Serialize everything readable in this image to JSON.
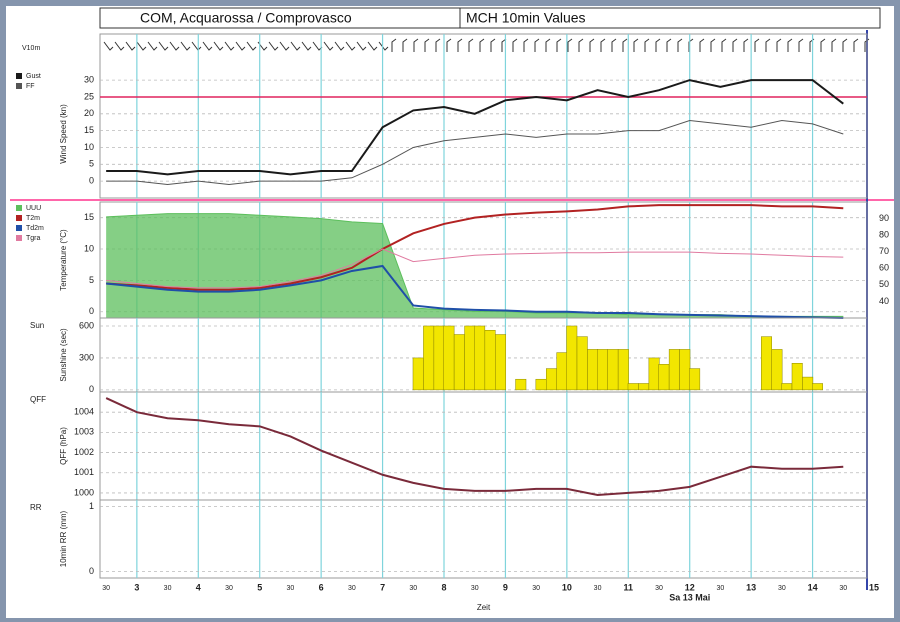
{
  "header": {
    "station": "COM, Acquarossa / Comprovasco",
    "product": "MCH 10min Values"
  },
  "chart_data": [
    {
      "type": "line",
      "barb_label": "V10m",
      "ylabel": "Wind Speed (kn)",
      "x": [
        2.5,
        3,
        3.5,
        4,
        4.5,
        5,
        5.5,
        6,
        6.5,
        7,
        7.5,
        8,
        8.5,
        9,
        9.5,
        10,
        10.5,
        11,
        11.5,
        12,
        12.5,
        13,
        13.5,
        14,
        14.5
      ],
      "series": [
        {
          "name": "Gust",
          "color": "#1a1a1a",
          "width": 2,
          "values": [
            3,
            3,
            2,
            3,
            3,
            3,
            2,
            3,
            3,
            16,
            21,
            22,
            20,
            24,
            25,
            24,
            27,
            25,
            27,
            30,
            28,
            30,
            30,
            30,
            23
          ]
        },
        {
          "name": "FF",
          "color": "#555555",
          "width": 1,
          "values": [
            0,
            0,
            -1,
            0,
            -1,
            0,
            0,
            0,
            1,
            5,
            10,
            12,
            13,
            14,
            13,
            14,
            14,
            15,
            15,
            18,
            17,
            16,
            18,
            17,
            14
          ]
        }
      ],
      "ylim": [
        -5,
        33
      ],
      "yticks": [
        0,
        5,
        10,
        15,
        20,
        25,
        30
      ],
      "reference_line": 25,
      "reference_color": "#e0245e",
      "xlim": [
        2.4,
        15
      ]
    },
    {
      "type": "line",
      "ylabel": "Temperature (°C)",
      "x": [
        2.5,
        3,
        3.5,
        4,
        4.5,
        5,
        5.5,
        6,
        6.5,
        7,
        7.5,
        8,
        8.5,
        9,
        9.5,
        10,
        10.5,
        11,
        11.5,
        12,
        12.5,
        13,
        13.5,
        14,
        14.5
      ],
      "series": [
        {
          "name": "UUU",
          "color": "#5cbf5c",
          "axis": "y2",
          "area": true,
          "values": [
            91,
            92,
            93,
            93,
            93,
            92,
            91,
            90,
            88,
            87,
            36,
            35,
            34,
            34,
            33,
            33,
            33,
            32,
            32,
            32,
            32,
            31,
            31,
            31,
            31
          ]
        },
        {
          "name": "T2m",
          "color": "#b22222",
          "width": 2,
          "values": [
            4.5,
            4.2,
            3.8,
            3.5,
            3.5,
            3.8,
            4.5,
            5.5,
            7,
            10,
            12.5,
            14,
            15,
            15.5,
            15.8,
            16,
            16.3,
            16.8,
            17,
            17,
            17,
            17,
            16.8,
            16.8,
            16.5
          ]
        },
        {
          "name": "Td2m",
          "color": "#1f4fa8",
          "width": 2,
          "values": [
            4.5,
            4,
            3.5,
            3.2,
            3.2,
            3.5,
            4.2,
            5,
            6.5,
            7.3,
            1,
            0.5,
            0.3,
            0.2,
            0,
            0,
            -0.2,
            -0.2,
            -0.4,
            -0.5,
            -0.6,
            -0.7,
            -0.8,
            -0.9,
            -1
          ]
        },
        {
          "name": "Tgra",
          "color": "#e07aa0",
          "width": 1,
          "values": [
            5,
            4.5,
            4,
            3.8,
            3.8,
            4,
            4.8,
            5.8,
            7.5,
            10,
            8,
            8.5,
            9,
            9.2,
            9.3,
            9.4,
            9.4,
            9.5,
            9.5,
            9.5,
            9.3,
            9.2,
            9,
            8.8,
            8.7
          ]
        }
      ],
      "ylim": [
        -1,
        17.5
      ],
      "yticks": [
        0,
        5,
        10,
        15
      ],
      "y2lim": [
        30,
        100
      ],
      "y2ticks": [
        40,
        50,
        60,
        70,
        80,
        90
      ],
      "xlim": [
        2.4,
        15
      ]
    },
    {
      "type": "bar",
      "label": "Sun",
      "ylabel": "Sunshine (sec)",
      "color": "#f2e600",
      "x": [
        7.58,
        7.75,
        7.92,
        8.08,
        8.25,
        8.42,
        8.58,
        8.75,
        8.92,
        9.08,
        9.25,
        9.42,
        9.58,
        9.75,
        9.92,
        10.08,
        10.25,
        10.42,
        10.58,
        10.75,
        10.92,
        11.08,
        11.25,
        11.42,
        11.58,
        11.75,
        11.92,
        12.08,
        12.25,
        12.42,
        12.58,
        12.75,
        12.92,
        13.08,
        13.25,
        13.42,
        13.58,
        13.75,
        13.92,
        14.08
      ],
      "values": [
        300,
        600,
        600,
        600,
        520,
        600,
        600,
        560,
        520,
        0,
        100,
        0,
        100,
        200,
        350,
        600,
        500,
        380,
        380,
        380,
        380,
        60,
        60,
        300,
        240,
        380,
        380,
        200,
        0,
        0,
        0,
        0,
        0,
        0,
        500,
        380,
        60,
        250,
        120,
        60
      ],
      "ylim": [
        -20,
        675
      ],
      "yticks": [
        0,
        300,
        600
      ],
      "xlim": [
        2.4,
        15
      ]
    },
    {
      "type": "line",
      "label": "QFF",
      "ylabel": "QFF (hPa)",
      "x": [
        2.5,
        3,
        3.5,
        4,
        4.5,
        5,
        5.5,
        6,
        6.5,
        7,
        7.5,
        8,
        8.5,
        9,
        9.5,
        10,
        10.5,
        11,
        11.5,
        12,
        12.5,
        13,
        13.5,
        14,
        14.5
      ],
      "series": [
        {
          "color": "#7a2a3a",
          "width": 2,
          "values": [
            1004.7,
            1004.0,
            1003.7,
            1003.6,
            1003.4,
            1003.3,
            1002.8,
            1002.1,
            1001.5,
            1000.9,
            1000.5,
            1000.2,
            1000.1,
            1000.1,
            1000.2,
            1000.2,
            999.9,
            1000.0,
            1000.1,
            1000.3,
            1000.8,
            1001.3,
            1001.2,
            1001.2,
            1001.3
          ]
        }
      ],
      "ylim": [
        999.65,
        1005
      ],
      "yticks": [
        1000,
        1001,
        1002,
        1003,
        1004
      ],
      "xlim": [
        2.4,
        15
      ]
    },
    {
      "type": "empty",
      "label": "RR",
      "ylabel": "10min RR (mm)",
      "ylim": [
        -0.1,
        1.1
      ],
      "yticks": [
        0,
        1
      ],
      "xlim": [
        2.4,
        15
      ],
      "xlabel": "Zeit",
      "date_label": "Sa 13 Mai",
      "date_at": 12,
      "xticks": [
        {
          "value": 2.5,
          "label": "30"
        },
        3,
        {
          "value": 3.5,
          "label": "30"
        },
        4,
        {
          "value": 4.5,
          "label": "30"
        },
        5,
        {
          "value": 5.5,
          "label": "30"
        },
        6,
        {
          "value": 6.5,
          "label": "30"
        },
        7,
        {
          "value": 7.5,
          "label": "30"
        },
        8,
        {
          "value": 8.5,
          "label": "30"
        },
        9,
        {
          "value": 9.5,
          "label": "30"
        },
        10,
        {
          "value": 10.5,
          "label": "30"
        },
        11,
        {
          "value": 11.5,
          "label": "30"
        },
        12,
        {
          "value": 12.5,
          "label": "30"
        },
        13,
        {
          "value": 13.5,
          "label": "30"
        },
        14,
        {
          "value": 14.5,
          "label": "30"
        },
        15
      ]
    }
  ]
}
